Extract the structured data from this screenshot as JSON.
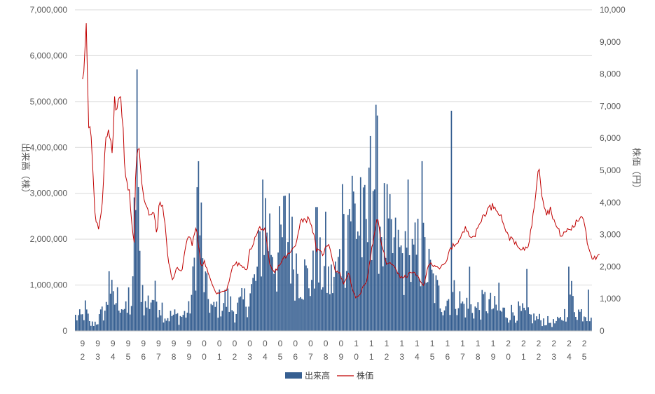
{
  "chart_data": {
    "type": "bar+line",
    "series": [
      {
        "name": "出来高",
        "kind": "bar",
        "axis": "left",
        "color": "#365F91"
      },
      {
        "name": "株価",
        "kind": "line",
        "axis": "right",
        "color": "#C00000"
      }
    ],
    "left_axis": {
      "label": "出来高（株）",
      "ylim": [
        0,
        7000000
      ],
      "ticks": [
        "0",
        "1,000,000",
        "2,000,000",
        "3,000,000",
        "4,000,000",
        "5,000,000",
        "6,000,000",
        "7,000,000"
      ]
    },
    "right_axis": {
      "label": "株価（円）",
      "ylim": [
        0,
        10000
      ],
      "ticks": [
        "0",
        "1,000",
        "2,000",
        "3,000",
        "4,000",
        "5,000",
        "6,000",
        "7,000",
        "8,000",
        "9,000",
        "10,000"
      ]
    },
    "x_tick_labels": [
      [
        "9",
        "2"
      ],
      [
        "9",
        "3"
      ],
      [
        "9",
        "4"
      ],
      [
        "9",
        "5"
      ],
      [
        "9",
        "6"
      ],
      [
        "9",
        "7"
      ],
      [
        "9",
        "8"
      ],
      [
        "9",
        "9"
      ],
      [
        "0",
        "0"
      ],
      [
        "0",
        "1"
      ],
      [
        "0",
        "2"
      ],
      [
        "0",
        "3"
      ],
      [
        "0",
        "4"
      ],
      [
        "0",
        "5"
      ],
      [
        "0",
        "6"
      ],
      [
        "0",
        "7"
      ],
      [
        "0",
        "8"
      ],
      [
        "0",
        "9"
      ],
      [
        "1",
        "0"
      ],
      [
        "1",
        "1"
      ],
      [
        "1",
        "2"
      ],
      [
        "1",
        "3"
      ],
      [
        "1",
        "4"
      ],
      [
        "1",
        "5"
      ],
      [
        "1",
        "6"
      ],
      [
        "1",
        "7"
      ],
      [
        "1",
        "8"
      ],
      [
        "1",
        "9"
      ],
      [
        "2",
        "0"
      ],
      [
        "2",
        "1"
      ],
      [
        "2",
        "2"
      ],
      [
        "2",
        "3"
      ],
      [
        "2",
        "4"
      ],
      [
        "2",
        "5"
      ]
    ],
    "volume_anchors": [
      [
        0,
        350000
      ],
      [
        0.2,
        550000
      ],
      [
        0.5,
        150000
      ],
      [
        1,
        250000
      ],
      [
        1.3,
        450000
      ],
      [
        1.6,
        600000
      ],
      [
        1.8,
        1250000
      ],
      [
        2,
        700000
      ],
      [
        2.4,
        850000
      ],
      [
        2.9,
        450000
      ],
      [
        3.3,
        750000
      ],
      [
        3.6,
        5700000
      ],
      [
        3.7,
        1900000
      ],
      [
        4.1,
        600000
      ],
      [
        4.6,
        900000
      ],
      [
        5.1,
        750000
      ],
      [
        5.5,
        350000
      ],
      [
        6,
        400000
      ],
      [
        6.4,
        350000
      ],
      [
        7,
        500000
      ],
      [
        7.3,
        1200000
      ],
      [
        7.6,
        3650000
      ],
      [
        7.9,
        1550000
      ],
      [
        8.2,
        900000
      ],
      [
        8.6,
        500000
      ],
      [
        9,
        700000
      ],
      [
        9.5,
        800000
      ],
      [
        10,
        500000
      ],
      [
        10.5,
        700000
      ],
      [
        11,
        900000
      ],
      [
        11.5,
        1400000
      ],
      [
        11.9,
        3000000
      ],
      [
        12.3,
        2500000
      ],
      [
        12.8,
        1800000
      ],
      [
        13.3,
        2600000
      ],
      [
        13.8,
        2000000
      ],
      [
        14.3,
        1550000
      ],
      [
        14.8,
        1300000
      ],
      [
        15.3,
        1400000
      ],
      [
        15.8,
        1600000
      ],
      [
        16.3,
        1200000
      ],
      [
        16.8,
        1500000
      ],
      [
        17.3,
        2500000
      ],
      [
        17.6,
        3400000
      ],
      [
        18,
        2900000
      ],
      [
        18.4,
        2400000
      ],
      [
        18.8,
        2600000
      ],
      [
        19,
        3900000
      ],
      [
        19.2,
        4150000
      ],
      [
        19.6,
        2900000
      ],
      [
        20,
        2400000
      ],
      [
        20.5,
        2000000
      ],
      [
        21,
        1900000
      ],
      [
        21.4,
        1600000
      ],
      [
        21.8,
        1750000
      ],
      [
        22.2,
        2100000
      ],
      [
        22.6,
        1700000
      ],
      [
        23,
        1250000
      ],
      [
        23.4,
        900000
      ],
      [
        23.8,
        750000
      ],
      [
        24.2,
        850000
      ],
      [
        24.6,
        900000
      ],
      [
        25,
        650000
      ],
      [
        25.5,
        600000
      ],
      [
        26,
        550000
      ],
      [
        26.5,
        750000
      ],
      [
        27,
        600000
      ],
      [
        27.5,
        500000
      ],
      [
        28,
        450000
      ],
      [
        28.5,
        500000
      ],
      [
        29,
        450000
      ],
      [
        29.5,
        350000
      ],
      [
        30,
        300000
      ],
      [
        30.5,
        250000
      ],
      [
        31,
        200000
      ],
      [
        31.4,
        250000
      ],
      [
        31.8,
        500000
      ],
      [
        32,
        1150000
      ],
      [
        32.3,
        700000
      ],
      [
        32.7,
        450000
      ],
      [
        33,
        500000
      ],
      [
        33.5,
        450000
      ]
    ],
    "volume_spikes": [
      [
        0.15,
        580000
      ],
      [
        1.75,
        1300000
      ],
      [
        3.0,
        950000
      ],
      [
        3.6,
        5700000
      ],
      [
        7.6,
        3700000
      ],
      [
        7.8,
        2800000
      ],
      [
        11.9,
        3300000
      ],
      [
        13.6,
        3000000
      ],
      [
        15.4,
        2700000
      ],
      [
        16.0,
        2600000
      ],
      [
        17.1,
        3200000
      ],
      [
        18.3,
        3350000
      ],
      [
        18.9,
        4250000
      ],
      [
        19.4,
        3900000
      ],
      [
        20.0,
        3200000
      ],
      [
        21.4,
        3300000
      ],
      [
        22.3,
        3700000
      ],
      [
        24.3,
        4800000
      ],
      [
        25.5,
        1400000
      ],
      [
        27.4,
        1050000
      ],
      [
        29.2,
        1350000
      ],
      [
        32.0,
        1400000
      ],
      [
        33.3,
        900000
      ]
    ],
    "price_anchors": [
      [
        0,
        7950
      ],
      [
        0.1,
        8300
      ],
      [
        0.2,
        9450
      ],
      [
        0.3,
        9500
      ],
      [
        0.35,
        6150
      ],
      [
        0.5,
        6350
      ],
      [
        0.6,
        5700
      ],
      [
        0.8,
        3750
      ],
      [
        0.9,
        3300
      ],
      [
        1.1,
        3200
      ],
      [
        1.3,
        4000
      ],
      [
        1.5,
        6000
      ],
      [
        1.7,
        6350
      ],
      [
        1.8,
        6050
      ],
      [
        2.0,
        5200
      ],
      [
        2.05,
        7650
      ],
      [
        2.2,
        6700
      ],
      [
        2.5,
        7500
      ],
      [
        2.7,
        6050
      ],
      [
        2.8,
        4750
      ],
      [
        3.1,
        4350
      ],
      [
        3.2,
        3500
      ],
      [
        3.4,
        2750
      ],
      [
        3.5,
        5150
      ],
      [
        3.7,
        5750
      ],
      [
        3.9,
        4600
      ],
      [
        4.1,
        4000
      ],
      [
        4.3,
        3850
      ],
      [
        4.4,
        3600
      ],
      [
        4.7,
        3650
      ],
      [
        4.9,
        2900
      ],
      [
        5.0,
        3900
      ],
      [
        5.3,
        3900
      ],
      [
        5.6,
        2350
      ],
      [
        5.9,
        1550
      ],
      [
        6.2,
        2000
      ],
      [
        6.5,
        1800
      ],
      [
        6.8,
        2700
      ],
      [
        7.0,
        3000
      ],
      [
        7.2,
        2700
      ],
      [
        7.5,
        3200
      ],
      [
        7.8,
        2000
      ],
      [
        8.0,
        2200
      ],
      [
        8.4,
        1600
      ],
      [
        8.8,
        1150
      ],
      [
        9.2,
        1200
      ],
      [
        9.5,
        1300
      ],
      [
        9.8,
        1900
      ],
      [
        10.0,
        2100
      ],
      [
        10.4,
        2050
      ],
      [
        10.8,
        1850
      ],
      [
        11.0,
        2500
      ],
      [
        11.4,
        2950
      ],
      [
        11.7,
        3250
      ],
      [
        12.0,
        3100
      ],
      [
        12.3,
        2050
      ],
      [
        12.6,
        1800
      ],
      [
        13.0,
        2100
      ],
      [
        13.3,
        2300
      ],
      [
        13.6,
        2400
      ],
      [
        14.0,
        2650
      ],
      [
        14.3,
        3400
      ],
      [
        14.6,
        3500
      ],
      [
        15.0,
        3450
      ],
      [
        15.4,
        2500
      ],
      [
        15.8,
        2400
      ],
      [
        16.2,
        2750
      ],
      [
        16.6,
        1900
      ],
      [
        16.9,
        1800
      ],
      [
        17.2,
        1450
      ],
      [
        17.5,
        1850
      ],
      [
        17.8,
        1200
      ],
      [
        18.0,
        1000
      ],
      [
        18.3,
        1200
      ],
      [
        18.7,
        1600
      ],
      [
        19.0,
        2500
      ],
      [
        19.4,
        3500
      ],
      [
        19.7,
        2600
      ],
      [
        20.0,
        2100
      ],
      [
        20.5,
        2050
      ],
      [
        20.9,
        1650
      ],
      [
        21.3,
        1700
      ],
      [
        21.7,
        1850
      ],
      [
        22.0,
        1700
      ],
      [
        22.4,
        1400
      ],
      [
        22.8,
        2100
      ],
      [
        23.2,
        2050
      ],
      [
        23.5,
        1950
      ],
      [
        23.9,
        2100
      ],
      [
        24.2,
        2600
      ],
      [
        24.4,
        2650
      ],
      [
        24.8,
        2850
      ],
      [
        25.2,
        3200
      ],
      [
        25.5,
        3000
      ],
      [
        25.8,
        2950
      ],
      [
        26.2,
        3450
      ],
      [
        26.5,
        3700
      ],
      [
        26.8,
        3850
      ],
      [
        27.1,
        3900
      ],
      [
        27.4,
        3700
      ],
      [
        27.7,
        3350
      ],
      [
        28.0,
        2900
      ],
      [
        28.3,
        2900
      ],
      [
        28.6,
        2600
      ],
      [
        28.9,
        2500
      ],
      [
        29.3,
        2650
      ],
      [
        29.6,
        3450
      ],
      [
        29.8,
        4300
      ],
      [
        30.0,
        5300
      ],
      [
        30.2,
        4300
      ],
      [
        30.5,
        3650
      ],
      [
        30.8,
        3800
      ],
      [
        31.1,
        3300
      ],
      [
        31.5,
        2950
      ],
      [
        31.9,
        3150
      ],
      [
        32.2,
        3200
      ],
      [
        32.6,
        3450
      ],
      [
        32.8,
        3600
      ],
      [
        33.0,
        3450
      ],
      [
        33.2,
        2750
      ],
      [
        33.5,
        2300
      ],
      [
        33.8,
        2250
      ],
      [
        34.0,
        2350
      ]
    ]
  },
  "legend": {
    "volume_label": "出来高",
    "price_label": "株価"
  }
}
